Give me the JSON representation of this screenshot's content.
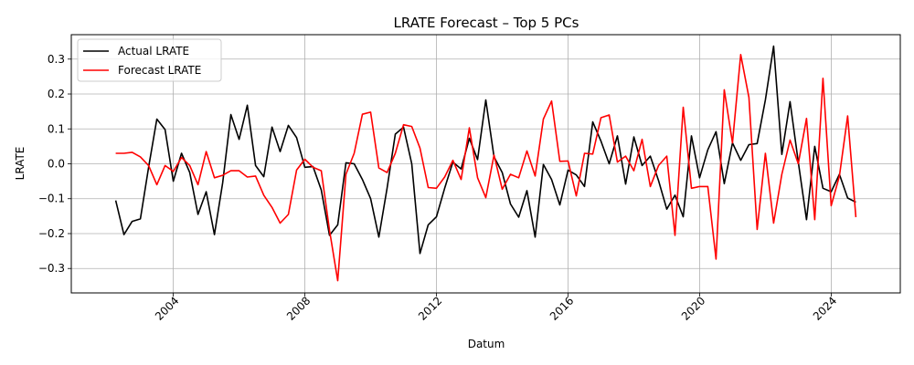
{
  "chart_data": {
    "type": "line",
    "title": "LRATE Forecast – Top 5 PCs",
    "xlabel": "Datum",
    "ylabel": "LRATE",
    "x_ticks": [
      "2004",
      "2008",
      "2012",
      "2016",
      "2020",
      "2024"
    ],
    "x_tick_values": [
      2004,
      2008,
      2012,
      2016,
      2020,
      2024
    ],
    "y_ticks": [
      "−0.3",
      "−0.2",
      "−0.1",
      "0.0",
      "0.1",
      "0.2",
      "0.3"
    ],
    "y_tick_values": [
      -0.3,
      -0.2,
      -0.1,
      0.0,
      0.1,
      0.2,
      0.3
    ],
    "xlim": [
      2000.9,
      2026.1
    ],
    "ylim": [
      -0.37,
      0.37
    ],
    "grid": true,
    "legend_position": "top-left",
    "x": [
      2002.25,
      2002.5,
      2002.75,
      2003.0,
      2003.25,
      2003.5,
      2003.75,
      2004.0,
      2004.25,
      2004.5,
      2004.75,
      2005.0,
      2005.25,
      2005.5,
      2005.75,
      2006.0,
      2006.25,
      2006.5,
      2006.75,
      2007.0,
      2007.25,
      2007.5,
      2007.75,
      2008.0,
      2008.25,
      2008.5,
      2008.75,
      2009.0,
      2009.25,
      2009.5,
      2009.75,
      2010.0,
      2010.25,
      2010.5,
      2010.75,
      2011.0,
      2011.25,
      2011.5,
      2011.75,
      2012.0,
      2012.25,
      2012.5,
      2012.75,
      2013.0,
      2013.25,
      2013.5,
      2013.75,
      2014.0,
      2014.25,
      2014.5,
      2014.75,
      2015.0,
      2015.25,
      2015.5,
      2015.75,
      2016.0,
      2016.25,
      2016.5,
      2016.75,
      2017.0,
      2017.25,
      2017.5,
      2017.75,
      2018.0,
      2018.25,
      2018.5,
      2018.75,
      2019.0,
      2019.25,
      2019.5,
      2019.75,
      2020.0,
      2020.25,
      2020.5,
      2020.75,
      2021.0,
      2021.25,
      2021.5,
      2021.75,
      2022.0,
      2022.25,
      2022.5,
      2022.75,
      2023.0,
      2023.25,
      2023.5,
      2023.75,
      2024.0,
      2024.25,
      2024.5,
      2024.75
    ],
    "series": [
      {
        "name": "Actual LRATE",
        "color": "#000000",
        "values": [
          -0.105,
          -0.203,
          -0.165,
          -0.158,
          -0.01,
          0.128,
          0.098,
          -0.05,
          0.03,
          -0.025,
          -0.145,
          -0.08,
          -0.203,
          -0.055,
          0.141,
          0.07,
          0.168,
          -0.005,
          -0.037,
          0.105,
          0.035,
          0.11,
          0.075,
          -0.01,
          -0.008,
          -0.075,
          -0.205,
          -0.175,
          0.003,
          0.0,
          -0.045,
          -0.1,
          -0.21,
          -0.07,
          0.085,
          0.105,
          0.0,
          -0.257,
          -0.175,
          -0.152,
          -0.07,
          0.005,
          -0.015,
          0.073,
          0.012,
          0.183,
          0.02,
          -0.025,
          -0.115,
          -0.153,
          -0.077,
          -0.21,
          -0.002,
          -0.045,
          -0.118,
          -0.018,
          -0.032,
          -0.065,
          0.12,
          0.065,
          0.0,
          0.08,
          -0.058,
          0.077,
          -0.005,
          0.022,
          -0.048,
          -0.13,
          -0.09,
          -0.152,
          0.08,
          -0.04,
          0.04,
          0.092,
          -0.057,
          0.06,
          0.01,
          0.055,
          0.058,
          0.183,
          0.337,
          0.027,
          0.178,
          0.005,
          -0.16,
          0.05,
          -0.07,
          -0.08,
          -0.03,
          -0.098,
          -0.11
        ]
      },
      {
        "name": "Forecast LRATE",
        "color": "#ff0000",
        "values": [
          0.03,
          0.03,
          0.033,
          0.02,
          -0.005,
          -0.06,
          -0.005,
          -0.022,
          0.018,
          -0.005,
          -0.06,
          0.035,
          -0.04,
          -0.033,
          -0.02,
          -0.02,
          -0.038,
          -0.035,
          -0.09,
          -0.125,
          -0.17,
          -0.145,
          -0.018,
          0.013,
          -0.01,
          -0.02,
          -0.19,
          -0.335,
          -0.03,
          0.03,
          0.142,
          0.148,
          -0.012,
          -0.025,
          0.03,
          0.112,
          0.107,
          0.045,
          -0.068,
          -0.07,
          -0.038,
          0.01,
          -0.045,
          0.103,
          -0.04,
          -0.097,
          0.025,
          -0.073,
          -0.03,
          -0.04,
          0.037,
          -0.035,
          0.128,
          0.18,
          0.007,
          0.008,
          -0.092,
          0.03,
          0.028,
          0.132,
          0.14,
          0.005,
          0.022,
          -0.02,
          0.07,
          -0.065,
          -0.005,
          0.022,
          -0.205,
          0.162,
          -0.07,
          -0.065,
          -0.065,
          -0.273,
          0.212,
          0.06,
          0.313,
          0.19,
          -0.188,
          0.03,
          -0.17,
          -0.03,
          0.068,
          0.0,
          0.13,
          -0.16,
          0.245,
          -0.12,
          -0.035,
          0.137,
          -0.153
        ]
      }
    ]
  }
}
